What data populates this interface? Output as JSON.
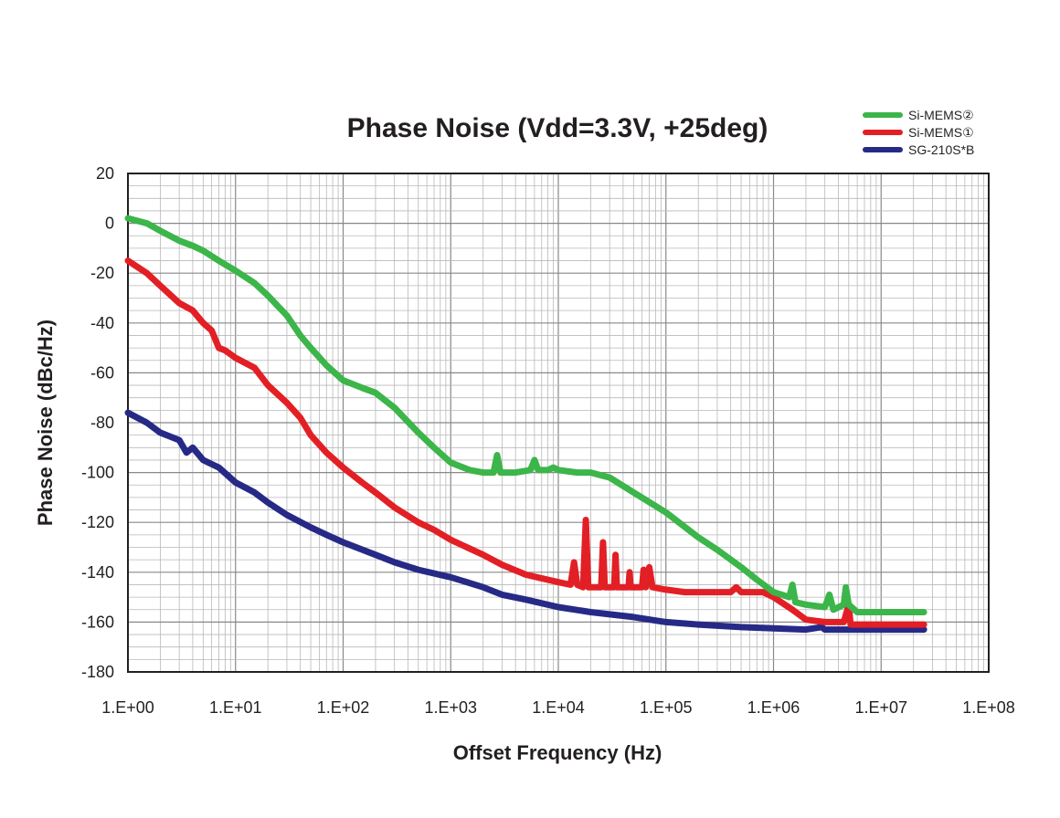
{
  "chart_data": {
    "type": "line",
    "title": "Phase Noise (Vdd=3.3V, +25deg)",
    "xlabel": "Offset Frequency (Hz)",
    "ylabel": "Phase Noise (dBc/Hz)",
    "x_scale": "log",
    "xlim": [
      1,
      100000000
    ],
    "ylim": [
      -180,
      20
    ],
    "grid": true,
    "legend_position": "top-right",
    "x_tick_labels": [
      "1.E+00",
      "1.E+01",
      "1.E+02",
      "1.E+03",
      "1.E+04",
      "1.E+05",
      "1.E+06",
      "1.E+07",
      "1.E+08"
    ],
    "y_tick_labels": [
      "20",
      "0",
      "-20",
      "-40",
      "-60",
      "-80",
      "-100",
      "-120",
      "-140",
      "-160",
      "-180"
    ],
    "series": [
      {
        "name": "Si-MEMS②",
        "color": "#3cb54a",
        "points": [
          [
            1,
            2
          ],
          [
            1.5,
            0
          ],
          [
            2,
            -3
          ],
          [
            3,
            -7
          ],
          [
            4,
            -9
          ],
          [
            5,
            -11
          ],
          [
            7,
            -15
          ],
          [
            10,
            -19
          ],
          [
            15,
            -24
          ],
          [
            20,
            -29
          ],
          [
            30,
            -37
          ],
          [
            40,
            -45
          ],
          [
            50,
            -50
          ],
          [
            70,
            -57
          ],
          [
            100,
            -63
          ],
          [
            150,
            -66
          ],
          [
            200,
            -68
          ],
          [
            300,
            -74
          ],
          [
            500,
            -84
          ],
          [
            700,
            -90
          ],
          [
            1000,
            -96
          ],
          [
            1500,
            -99
          ],
          [
            2000,
            -100
          ],
          [
            2500,
            -100
          ],
          [
            2700,
            -93
          ],
          [
            2900,
            -100
          ],
          [
            4000,
            -100
          ],
          [
            5500,
            -99
          ],
          [
            6000,
            -95
          ],
          [
            6500,
            -99
          ],
          [
            8000,
            -99
          ],
          [
            9000,
            -98
          ],
          [
            10000,
            -99
          ],
          [
            15000,
            -100
          ],
          [
            20000,
            -100
          ],
          [
            30000,
            -102
          ],
          [
            50000,
            -108
          ],
          [
            100000,
            -116
          ],
          [
            200000,
            -126
          ],
          [
            300000,
            -131
          ],
          [
            500000,
            -138
          ],
          [
            700000,
            -143
          ],
          [
            1000000,
            -148
          ],
          [
            1400000,
            -150
          ],
          [
            1500000,
            -145
          ],
          [
            1600000,
            -152
          ],
          [
            2000000,
            -153
          ],
          [
            3000000,
            -154
          ],
          [
            3300000,
            -149
          ],
          [
            3600000,
            -155
          ],
          [
            4500000,
            -153
          ],
          [
            4700000,
            -146
          ],
          [
            5000000,
            -153
          ],
          [
            6000000,
            -156
          ],
          [
            10000000,
            -156
          ],
          [
            25000000,
            -156
          ]
        ]
      },
      {
        "name": "Si-MEMS①",
        "color": "#e31f26",
        "points": [
          [
            1,
            -15
          ],
          [
            1.5,
            -20
          ],
          [
            2,
            -25
          ],
          [
            3,
            -32
          ],
          [
            4,
            -35
          ],
          [
            5,
            -40
          ],
          [
            6,
            -43
          ],
          [
            7,
            -50
          ],
          [
            8,
            -51
          ],
          [
            10,
            -54
          ],
          [
            15,
            -58
          ],
          [
            20,
            -65
          ],
          [
            30,
            -72
          ],
          [
            40,
            -78
          ],
          [
            50,
            -85
          ],
          [
            70,
            -92
          ],
          [
            100,
            -98
          ],
          [
            150,
            -104
          ],
          [
            200,
            -108
          ],
          [
            300,
            -114
          ],
          [
            500,
            -120
          ],
          [
            700,
            -123
          ],
          [
            1000,
            -127
          ],
          [
            2000,
            -133
          ],
          [
            3000,
            -137
          ],
          [
            5000,
            -141
          ],
          [
            10000,
            -144
          ],
          [
            13000,
            -145
          ],
          [
            14000,
            -136
          ],
          [
            15000,
            -145
          ],
          [
            17000,
            -146
          ],
          [
            18000,
            -119
          ],
          [
            19000,
            -146
          ],
          [
            25000,
            -146
          ],
          [
            26000,
            -128
          ],
          [
            27000,
            -146
          ],
          [
            33000,
            -146
          ],
          [
            34000,
            -133
          ],
          [
            35000,
            -146
          ],
          [
            45000,
            -146
          ],
          [
            46000,
            -140
          ],
          [
            47000,
            -146
          ],
          [
            60000,
            -146
          ],
          [
            62000,
            -139
          ],
          [
            65000,
            -146
          ],
          [
            70000,
            -138
          ],
          [
            75000,
            -146
          ],
          [
            100000,
            -147
          ],
          [
            150000,
            -148
          ],
          [
            200000,
            -148
          ],
          [
            400000,
            -148
          ],
          [
            450000,
            -146
          ],
          [
            500000,
            -148
          ],
          [
            800000,
            -148
          ],
          [
            1000000,
            -150
          ],
          [
            1500000,
            -155
          ],
          [
            2000000,
            -159
          ],
          [
            3000000,
            -160
          ],
          [
            4500000,
            -160
          ],
          [
            5000000,
            -153
          ],
          [
            5200000,
            -161
          ],
          [
            10000000,
            -161
          ],
          [
            25000000,
            -161
          ]
        ]
      },
      {
        "name": "SG-210S*B",
        "color": "#262a86",
        "points": [
          [
            1,
            -76
          ],
          [
            1.5,
            -80
          ],
          [
            2,
            -84
          ],
          [
            3,
            -87
          ],
          [
            3.5,
            -92
          ],
          [
            4,
            -90
          ],
          [
            5,
            -95
          ],
          [
            7,
            -98
          ],
          [
            10,
            -104
          ],
          [
            15,
            -108
          ],
          [
            20,
            -112
          ],
          [
            30,
            -117
          ],
          [
            50,
            -122
          ],
          [
            70,
            -125
          ],
          [
            100,
            -128
          ],
          [
            200,
            -133
          ],
          [
            300,
            -136
          ],
          [
            500,
            -139
          ],
          [
            1000,
            -142
          ],
          [
            2000,
            -146
          ],
          [
            3000,
            -149
          ],
          [
            5000,
            -151
          ],
          [
            10000,
            -154
          ],
          [
            20000,
            -156
          ],
          [
            50000,
            -158
          ],
          [
            100000,
            -160
          ],
          [
            200000,
            -161
          ],
          [
            500000,
            -162
          ],
          [
            1000000,
            -162.5
          ],
          [
            2000000,
            -163
          ],
          [
            2800000,
            -162
          ],
          [
            3000000,
            -163
          ],
          [
            10000000,
            -163
          ],
          [
            25000000,
            -163
          ]
        ]
      }
    ]
  }
}
